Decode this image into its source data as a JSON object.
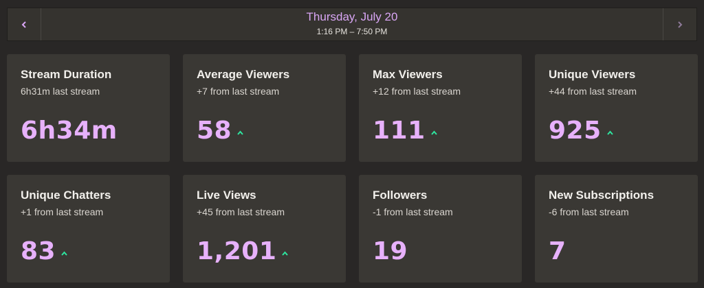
{
  "header": {
    "date": "Thursday, July 20",
    "time_range": "1:16 PM – 7:50 PM",
    "prev_icon": "chevron-left-icon",
    "next_icon": "chevron-right-icon"
  },
  "colors": {
    "background": "#292726",
    "card": "#3a3834",
    "accent": "#e7b1fb",
    "trend_up": "#2ee6a0"
  },
  "cards": [
    {
      "title": "Stream Duration",
      "subtitle": "6h31m last stream",
      "value": "6h34m",
      "trend": "none"
    },
    {
      "title": "Average Viewers",
      "subtitle": "+7 from last stream",
      "value": "58",
      "trend": "up"
    },
    {
      "title": "Max Viewers",
      "subtitle": "+12 from last stream",
      "value": "111",
      "trend": "up"
    },
    {
      "title": "Unique Viewers",
      "subtitle": "+44 from last stream",
      "value": "925",
      "trend": "up"
    },
    {
      "title": "Unique Chatters",
      "subtitle": "+1 from last stream",
      "value": "83",
      "trend": "up"
    },
    {
      "title": "Live Views",
      "subtitle": "+45 from last stream",
      "value": "1,201",
      "trend": "up"
    },
    {
      "title": "Followers",
      "subtitle": "-1 from last stream",
      "value": "19",
      "trend": "none"
    },
    {
      "title": "New Subscriptions",
      "subtitle": "-6 from last stream",
      "value": "7",
      "trend": "none"
    }
  ]
}
